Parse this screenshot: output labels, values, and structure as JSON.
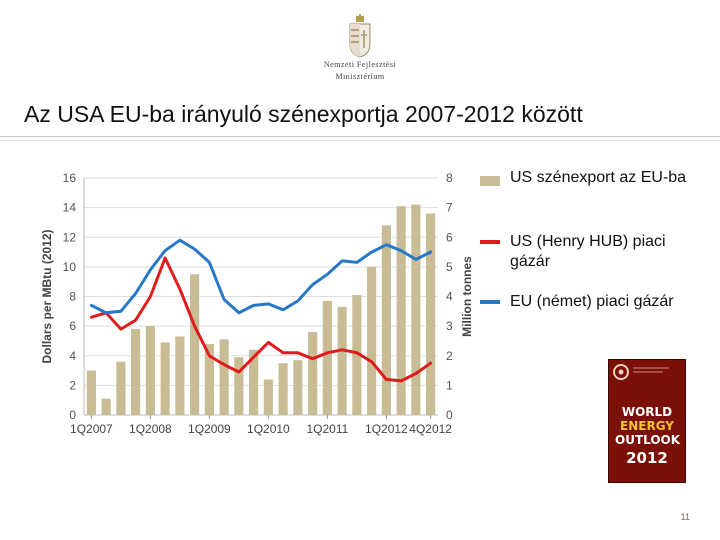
{
  "header": {
    "org_line1": "Nemzeti Fejlesztési",
    "org_line2": "Minisztérium",
    "title": "Az USA EU-ba irányuló szénexportja  2007-2012 között"
  },
  "legend": [
    {
      "label": "US szénexport az EU-ba",
      "color": "#c8bc95",
      "kind": "bar"
    },
    {
      "label": "US (Henry HUB) piaci gázár",
      "color": "#e01b1b",
      "kind": "line"
    },
    {
      "label": "EU (német) piaci gázár",
      "color": "#2878c8",
      "kind": "line"
    }
  ],
  "book": {
    "line1": "WORLD",
    "line2": "ENERGY",
    "line3": "OUTLOOK",
    "line4": "2012"
  },
  "page_number": "11",
  "chart_data": {
    "type": "bar",
    "ylabel_left": "Dollars per MBtu (2012)",
    "ylabel_right": "Million tonnes",
    "ylim_left": [
      0,
      16
    ],
    "ylim_right": [
      0,
      8
    ],
    "left_ticks": [
      0,
      2,
      4,
      6,
      8,
      10,
      12,
      14,
      16
    ],
    "right_ticks": [
      0,
      1,
      2,
      3,
      4,
      5,
      6,
      7,
      8
    ],
    "x_tick_labels": [
      "1Q2007",
      "1Q2008",
      "1Q2009",
      "1Q2010",
      "1Q2011",
      "1Q2012",
      "4Q2012"
    ],
    "x_tick_index": [
      0,
      4,
      8,
      12,
      16,
      20,
      23
    ],
    "grid": "horizontal",
    "series": [
      {
        "name": "US szénexport az EU-ba",
        "axis": "right",
        "type": "bar",
        "color": "#c8bc95",
        "values": [
          1.5,
          0.55,
          1.8,
          2.9,
          3.0,
          2.45,
          2.65,
          4.75,
          2.4,
          2.55,
          1.95,
          2.2,
          1.2,
          1.75,
          1.85,
          2.8,
          3.85,
          3.65,
          4.05,
          5.0,
          6.4,
          7.05,
          7.1,
          6.8
        ]
      },
      {
        "name": "US (Henry HUB) piaci gázár",
        "axis": "left",
        "type": "line",
        "color": "#e01b1b",
        "values": [
          6.6,
          6.9,
          5.8,
          6.4,
          8.0,
          10.6,
          8.5,
          6.0,
          4.0,
          3.4,
          2.9,
          3.9,
          4.9,
          4.2,
          4.2,
          3.8,
          4.2,
          4.4,
          4.2,
          3.6,
          2.4,
          2.3,
          2.8,
          3.5
        ]
      },
      {
        "name": "EU (német) piaci gázár",
        "axis": "left",
        "type": "line",
        "color": "#2878c8",
        "values": [
          7.4,
          6.9,
          7.0,
          8.2,
          9.8,
          11.1,
          11.8,
          11.2,
          10.3,
          7.8,
          6.9,
          7.4,
          7.5,
          7.1,
          7.7,
          8.8,
          9.5,
          10.4,
          10.3,
          11.0,
          11.5,
          11.1,
          10.5,
          11.0
        ]
      }
    ]
  }
}
